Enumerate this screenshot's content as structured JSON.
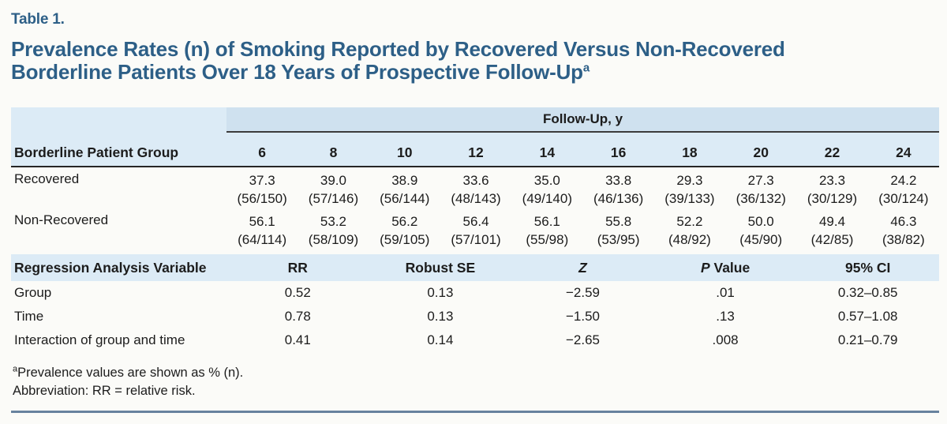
{
  "header": {
    "table_label": "Table 1.",
    "title_line1": "Prevalence Rates (n) of Smoking Reported by Recovered Versus Non-Recovered",
    "title_line2": "Borderline Patients Over 18 Years of Prospective Follow-Up",
    "title_footnote_marker": "a"
  },
  "prevalence_table": {
    "row_header": "Borderline Patient Group",
    "span_header": "Follow-Up, y",
    "columns": [
      "6",
      "8",
      "10",
      "12",
      "14",
      "16",
      "18",
      "20",
      "22",
      "24"
    ],
    "rows": [
      {
        "label": "Recovered",
        "pct": [
          "37.3",
          "39.0",
          "38.9",
          "33.6",
          "35.0",
          "33.8",
          "29.3",
          "27.3",
          "23.3",
          "24.2"
        ],
        "n": [
          "(56/150)",
          "(57/146)",
          "(56/144)",
          "(48/143)",
          "(49/140)",
          "(46/136)",
          "(39/133)",
          "(36/132)",
          "(30/129)",
          "(30/124)"
        ]
      },
      {
        "label": "Non-Recovered",
        "pct": [
          "56.1",
          "53.2",
          "56.2",
          "56.4",
          "56.1",
          "55.8",
          "52.2",
          "50.0",
          "49.4",
          "46.3"
        ],
        "n": [
          "(64/114)",
          "(58/109)",
          "(59/105)",
          "(57/101)",
          "(55/98)",
          "(53/95)",
          "(48/92)",
          "(45/90)",
          "(42/85)",
          "(38/82)"
        ]
      }
    ]
  },
  "regression_table": {
    "row_header": "Regression Analysis Variable",
    "columns": {
      "rr": "RR",
      "robust_se": "Robust SE",
      "z": "Z",
      "p_italic": "P",
      "p_rest": " Value",
      "ci": "95% CI"
    },
    "rows": [
      {
        "label": "Group",
        "rr": "0.52",
        "robust_se": "0.13",
        "z": "−2.59",
        "p": ".01",
        "ci": "0.32–0.85"
      },
      {
        "label": "Time",
        "rr": "0.78",
        "robust_se": "0.13",
        "z": "−1.50",
        "p": ".13",
        "ci": "0.57–1.08"
      },
      {
        "label": "Interaction of group and time",
        "rr": "0.41",
        "robust_se": "0.14",
        "z": "−2.65",
        "p": ".008",
        "ci": "0.21–0.79"
      }
    ]
  },
  "footnotes": [
    {
      "marker": "a",
      "text": "Prevalence values are shown as % (n)."
    },
    {
      "marker": "",
      "text": "Abbreviation: RR = relative risk."
    }
  ],
  "colors": {
    "title_blue": "#2d5f87",
    "band_light_blue": "#dcebf6",
    "band_medium_blue": "#cfe1ef",
    "heavy_rule": "#262626",
    "bottom_rule": "#68829e",
    "background": "#fbfbf8"
  }
}
